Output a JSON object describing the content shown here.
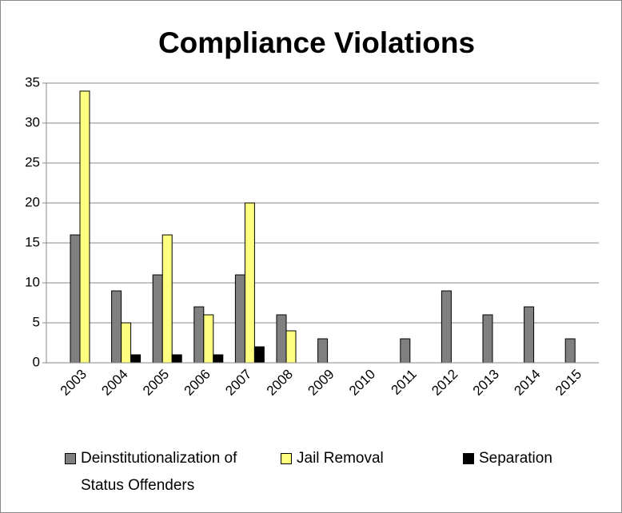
{
  "chart_data": {
    "type": "bar",
    "title": "Compliance Violations",
    "categories": [
      "2003",
      "2004",
      "2005",
      "2006",
      "2007",
      "2008",
      "2009",
      "2010",
      "2011",
      "2012",
      "2013",
      "2014",
      "2015"
    ],
    "series": [
      {
        "name": "Deinstitutionalization of Status Offenders",
        "color": "#808080",
        "values": [
          16,
          9,
          11,
          7,
          11,
          6,
          3,
          0,
          3,
          9,
          6,
          7,
          3
        ]
      },
      {
        "name": "Jail Removal",
        "color": "#ffff80",
        "values": [
          34,
          5,
          16,
          6,
          20,
          4,
          0,
          0,
          0,
          0,
          0,
          0,
          0
        ]
      },
      {
        "name": "Separation",
        "color": "#000000",
        "values": [
          0,
          1,
          1,
          1,
          2,
          0,
          0,
          0,
          0,
          0,
          0,
          0,
          0
        ]
      }
    ],
    "ylim": [
      0,
      35
    ],
    "yticks": [
      0,
      5,
      10,
      15,
      20,
      25,
      30,
      35
    ],
    "grid": true,
    "legend": "bottom"
  }
}
